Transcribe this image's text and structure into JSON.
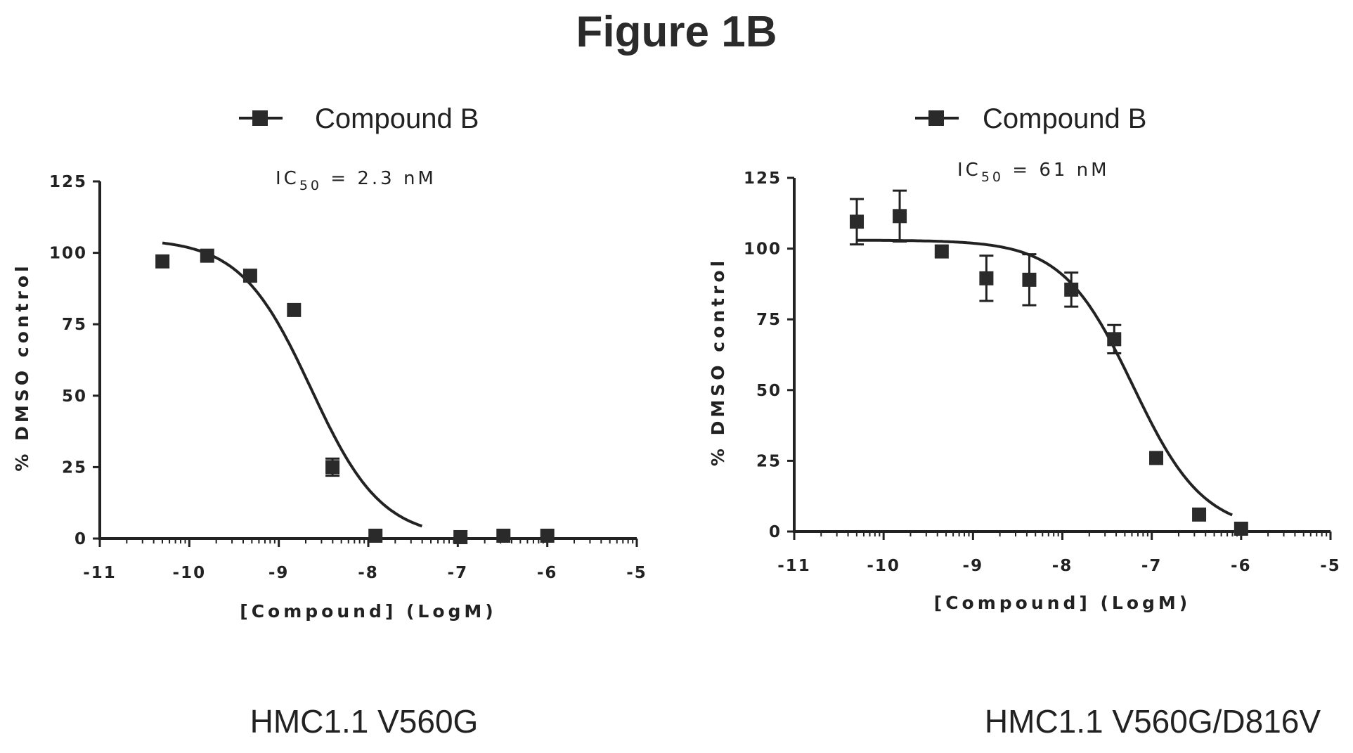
{
  "figure_title": "Figure 1B",
  "chart_data": [
    {
      "type": "scatter",
      "legend": "Compound B",
      "annotation": {
        "prefix": "IC",
        "subscript": "50",
        "value": "= 2.3 nM"
      },
      "xlabel": "[Compound] (LogM)",
      "ylabel": "% DMSO control",
      "caption": "HMC1.1 V560G",
      "xlim": [
        -11,
        -5
      ],
      "ylim": [
        0,
        125
      ],
      "xticks": [
        -11,
        -10,
        -9,
        -8,
        -7,
        -6,
        -5
      ],
      "yticks": [
        0,
        25,
        50,
        75,
        100,
        125
      ],
      "marker_color": "#2a2a2a",
      "series": [
        {
          "name": "Compound B",
          "points": [
            {
              "x": -10.3,
              "y": 97,
              "err": 0
            },
            {
              "x": -9.8,
              "y": 99,
              "err": 0
            },
            {
              "x": -9.32,
              "y": 92,
              "err": 0
            },
            {
              "x": -8.83,
              "y": 80,
              "err": 0
            },
            {
              "x": -8.4,
              "y": 25,
              "err": 3
            },
            {
              "x": -7.92,
              "y": 1,
              "err": 0
            },
            {
              "x": -6.97,
              "y": 0.5,
              "err": 0
            },
            {
              "x": -6.49,
              "y": 1,
              "err": 0
            },
            {
              "x": -6.0,
              "y": 1,
              "err": 0
            }
          ],
          "fit": {
            "top": 105,
            "bottom": 0,
            "logIC50": -8.64,
            "hill": 1.1,
            "x_range": [
              -10.3,
              -7.4
            ]
          }
        }
      ]
    },
    {
      "type": "scatter",
      "legend": "Compound B",
      "annotation": {
        "prefix": "IC",
        "subscript": "50",
        "value": "= 61 nM"
      },
      "xlabel": "[Compound] (LogM)",
      "ylabel": "% DMSO control",
      "caption": "HMC1.1 V560G/D816V",
      "xlim": [
        -11,
        -5
      ],
      "ylim": [
        0,
        125
      ],
      "xticks": [
        -11,
        -10,
        -9,
        -8,
        -7,
        -6,
        -5
      ],
      "yticks": [
        0,
        25,
        50,
        75,
        100,
        125
      ],
      "marker_color": "#2a2a2a",
      "series": [
        {
          "name": "Compound B",
          "points": [
            {
              "x": -10.3,
              "y": 109.5,
              "err": 8
            },
            {
              "x": -9.82,
              "y": 111.5,
              "err": 9
            },
            {
              "x": -9.35,
              "y": 99,
              "err": 0
            },
            {
              "x": -8.85,
              "y": 89.5,
              "err": 8
            },
            {
              "x": -8.37,
              "y": 89,
              "err": 9
            },
            {
              "x": -7.9,
              "y": 85.5,
              "err": 6
            },
            {
              "x": -7.42,
              "y": 68,
              "err": 5
            },
            {
              "x": -6.95,
              "y": 26,
              "err": 0
            },
            {
              "x": -6.47,
              "y": 6,
              "err": 0
            },
            {
              "x": -6.0,
              "y": 1,
              "err": 0
            }
          ],
          "fit": {
            "top": 103,
            "bottom": 0,
            "logIC50": -7.21,
            "hill": 1.1,
            "x_range": [
              -10.3,
              -6.1
            ]
          }
        }
      ]
    }
  ]
}
